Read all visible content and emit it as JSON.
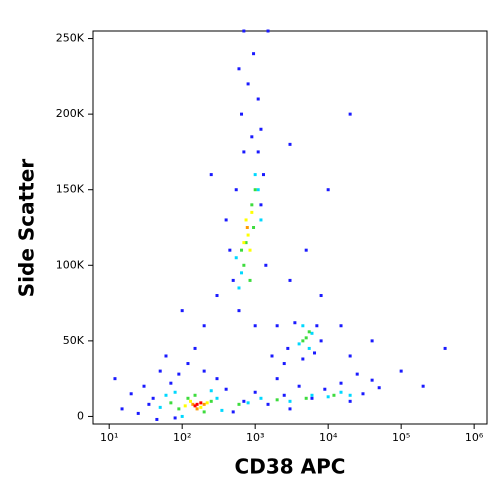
{
  "chart_data": {
    "type": "scatter",
    "x_label": "CD38 APC",
    "y_label": "Side Scatter",
    "xscale": "log",
    "xlim": [
      6,
      1500000
    ],
    "ylim": [
      -5000,
      255000
    ],
    "xticks": [
      {
        "value": 10,
        "label": "10¹"
      },
      {
        "value": 100,
        "label": "10²"
      },
      {
        "value": 1000,
        "label": "10³"
      },
      {
        "value": 10000,
        "label": "10⁴"
      },
      {
        "value": 100000,
        "label": "10⁵"
      },
      {
        "value": 1000000,
        "label": "10⁶"
      }
    ],
    "yticks": [
      0,
      {
        "value": 50000,
        "label": "50K"
      },
      {
        "value": 100000,
        "label": "100K"
      },
      {
        "value": 150000,
        "label": "150K"
      },
      {
        "value": 200000,
        "label": "200K"
      },
      {
        "value": 250000,
        "label": "250K"
      }
    ],
    "grid": false,
    "series": [
      {
        "color": "#1a1aff",
        "x": [
          15,
          20,
          25,
          30,
          40,
          12,
          50,
          35,
          70,
          90,
          300,
          400,
          500,
          200,
          120,
          60,
          45,
          80,
          700,
          1000,
          1500,
          2500,
          4000,
          6000,
          9000,
          15000,
          20000,
          30000,
          40000,
          50000,
          25000,
          2000,
          3000,
          500,
          450,
          600,
          1200,
          1300,
          1100,
          900,
          700,
          550,
          1400,
          1000,
          400,
          650,
          800,
          950,
          700,
          1100,
          600,
          1500,
          1200,
          2000,
          3000,
          5000,
          8000,
          15000,
          20000,
          200,
          300,
          150,
          100,
          40000,
          100000,
          200000,
          400000,
          10000,
          20000,
          3000,
          250,
          1700,
          2500,
          2800,
          7000,
          8000,
          3500,
          4500,
          6500
        ],
        "values": [
          5000,
          15000,
          2000,
          20000,
          12000,
          25000,
          30000,
          8000,
          22000,
          28000,
          25000,
          18000,
          3000,
          30000,
          35000,
          40000,
          -2000,
          -1000,
          10000,
          16000,
          8000,
          14000,
          20000,
          12000,
          18000,
          22000,
          10000,
          15000,
          24000,
          19000,
          28000,
          25000,
          5000,
          90000,
          110000,
          70000,
          140000,
          160000,
          175000,
          185000,
          175000,
          150000,
          100000,
          60000,
          130000,
          200000,
          220000,
          240000,
          255000,
          210000,
          230000,
          255000,
          190000,
          60000,
          90000,
          110000,
          80000,
          60000,
          40000,
          60000,
          80000,
          45000,
          70000,
          50000,
          30000,
          20000,
          45000,
          150000,
          200000,
          180000,
          160000,
          40000,
          35000,
          45000,
          60000,
          50000,
          62000,
          38000,
          42000
        ]
      },
      {
        "color": "#00d8ff",
        "x": [
          50,
          60,
          300,
          350,
          80,
          250,
          100,
          800,
          1200,
          3000,
          6000,
          10000,
          15000,
          20000,
          600,
          1100,
          650,
          1000,
          550,
          1200,
          4000,
          6000,
          4500,
          5500
        ],
        "values": [
          6000,
          14000,
          12000,
          4000,
          16000,
          17000,
          0,
          9000,
          12000,
          10000,
          14000,
          13000,
          16000,
          14000,
          85000,
          150000,
          95000,
          160000,
          105000,
          130000,
          48000,
          55000,
          60000,
          45000
        ]
      },
      {
        "color": "#3ddc3d",
        "x": [
          90,
          120,
          200,
          250,
          70,
          150,
          600,
          2000,
          5000,
          12000,
          700,
          900,
          750,
          1000,
          650,
          850,
          950,
          5000,
          4500,
          5500
        ],
        "values": [
          5000,
          12000,
          3000,
          10000,
          9000,
          14000,
          8000,
          11000,
          12000,
          14000,
          100000,
          140000,
          115000,
          150000,
          110000,
          90000,
          125000,
          52000,
          50000,
          56000
        ]
      },
      {
        "color": "#ffff00",
        "x": [
          110,
          180,
          220,
          130,
          800,
          750,
          850,
          900,
          700
        ],
        "values": [
          7000,
          6000,
          9000,
          10000,
          120000,
          130000,
          110000,
          135000,
          115000
        ]
      },
      {
        "color": "#ff9900",
        "x": [
          140,
          200,
          160,
          780
        ],
        "values": [
          8000,
          8000,
          5000,
          125000
        ]
      },
      {
        "color": "#ff0000",
        "x": [
          160,
          180,
          150
        ],
        "values": [
          8000,
          9000,
          7000
        ]
      }
    ]
  }
}
